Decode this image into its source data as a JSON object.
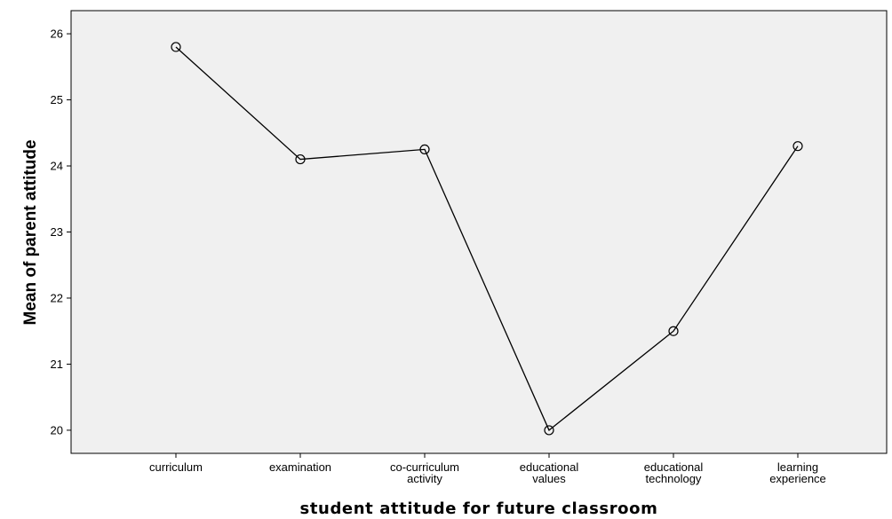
{
  "chart_data": {
    "type": "line",
    "title": "",
    "xlabel": "student attitude for future classroom",
    "ylabel": "Mean of parent attitude",
    "categories": [
      [
        "curriculum"
      ],
      [
        "examination"
      ],
      [
        "co-curriculum",
        "activity"
      ],
      [
        "educational",
        "values"
      ],
      [
        "educational",
        "technology"
      ],
      [
        "learning",
        "experience"
      ]
    ],
    "values": [
      25.8,
      24.1,
      24.25,
      20.0,
      21.5,
      24.3
    ],
    "ylim": [
      19.65,
      26.35
    ],
    "yticks": [
      20,
      21,
      22,
      23,
      24,
      25,
      26
    ],
    "grid": false,
    "colors": {
      "plot_background": "#f0f0f0",
      "line": "#000000",
      "marker": "#000000"
    }
  }
}
